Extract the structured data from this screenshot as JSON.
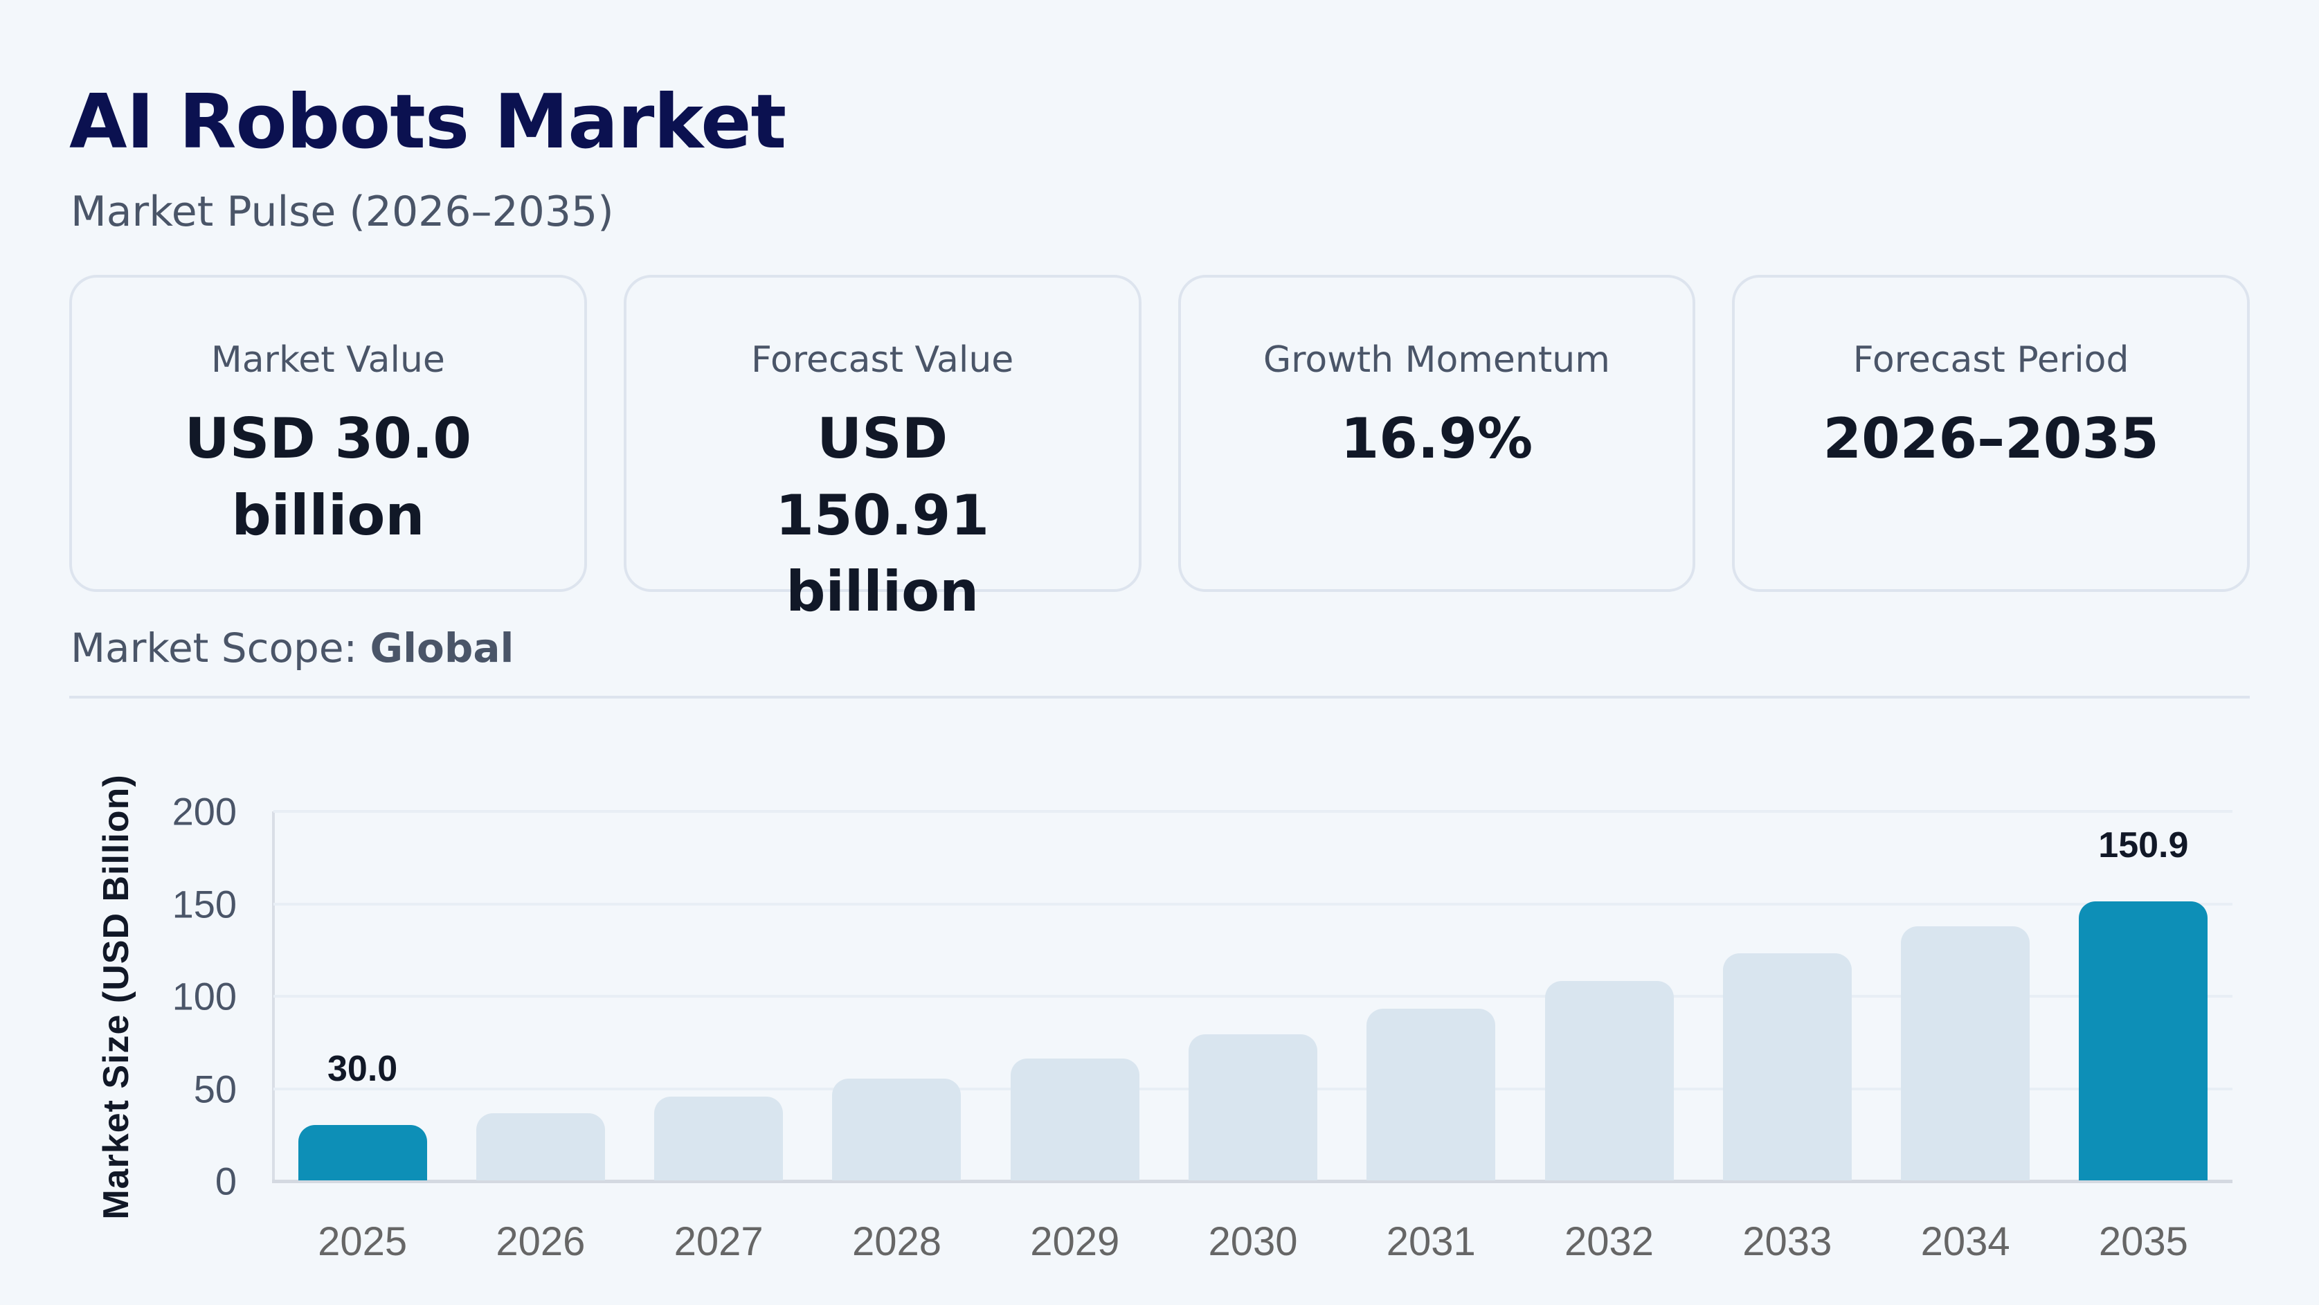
{
  "header": {
    "title": "AI Robots Market",
    "subtitle": "Market Pulse (2026–2035)"
  },
  "cards": [
    {
      "label": "Market Value",
      "value": "USD 30.0 billion"
    },
    {
      "label": "Forecast Value",
      "value": "USD 150.91 billion"
    },
    {
      "label": "Growth Momentum",
      "value": "16.9%"
    },
    {
      "label": "Forecast Period",
      "value": "2026–2035"
    }
  ],
  "scope": {
    "label": "Market Scope: ",
    "value": "Global"
  },
  "colors": {
    "title": "#0b1150",
    "highlight_bar": "#0d8fb7",
    "muted_bar": "#d9e5ef",
    "background": "#f3f7fb",
    "card_border": "#dde4ee"
  },
  "chart_data": {
    "type": "bar",
    "title": "",
    "xlabel": "",
    "ylabel": "Market Size (USD Billion)",
    "categories": [
      "2025",
      "2026",
      "2027",
      "2028",
      "2029",
      "2030",
      "2031",
      "2032",
      "2033",
      "2034",
      "2035"
    ],
    "values": [
      30.0,
      36.5,
      45.3,
      54.9,
      66.0,
      79.0,
      93.0,
      107.7,
      122.8,
      137.4,
      150.9
    ],
    "highlighted": [
      "2025",
      "2035"
    ],
    "data_labels": {
      "2025": "30.0",
      "2035": "150.9"
    },
    "yticks": [
      0,
      50,
      100,
      150,
      200
    ],
    "ylim": [
      0,
      200
    ],
    "grid": true,
    "legend": null
  }
}
